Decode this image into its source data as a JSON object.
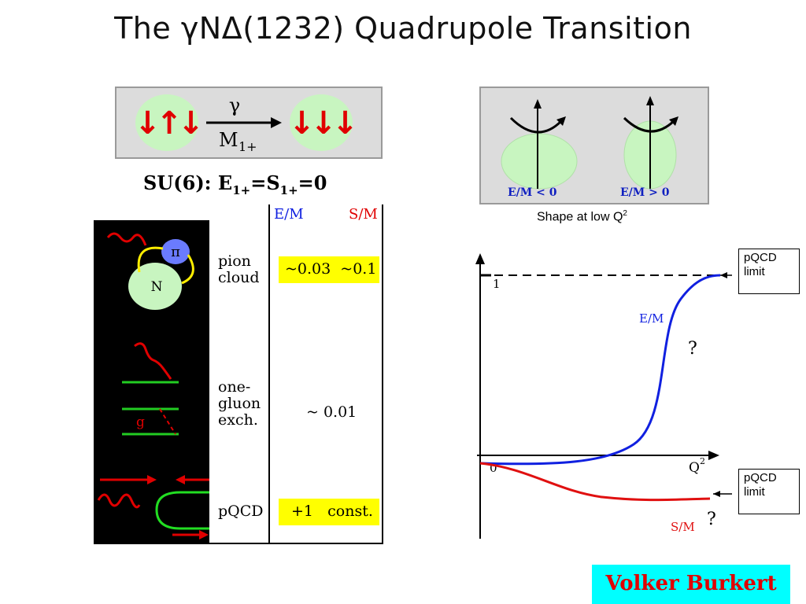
{
  "title": "The γNΔ(1232) Quadrupole Transition",
  "transition": {
    "left_arrows": "↓↑↓",
    "right_arrows": "↓↓↓",
    "photon": "γ",
    "multipole": "M",
    "multipole_sub": "1+"
  },
  "su6": {
    "prefix": "SU(6): E",
    "sub1": "1+",
    "mid": "=S",
    "sub2": "1+",
    "suffix": "=0"
  },
  "shapes": {
    "left_label": "E/M < 0",
    "right_label": "E/M > 0",
    "caption": "Shape at low Q",
    "caption_sup": "2"
  },
  "table": {
    "col_em": "E/M",
    "col_sm": "S/M",
    "rows": [
      {
        "line1": "pion",
        "line2": "cloud",
        "line3": "",
        "value": "~0.03  ~0.1"
      },
      {
        "line1": "one-",
        "line2": "gluon",
        "line3": "exch.",
        "value": "~ 0.01"
      },
      {
        "line1": "pQCD",
        "line2": "",
        "line3": "",
        "value": "+1   const."
      }
    ]
  },
  "diagrams": {
    "pion_label": "π",
    "nucleon_label": "N",
    "gluon_label": "g"
  },
  "plot": {
    "y_tick": "1",
    "origin": "0",
    "x_label": "Q",
    "x_label_sup": "2",
    "em_label": "E/M",
    "sm_label": "S/M",
    "question_mark": "?",
    "em_color": "#1020e0",
    "sm_color": "#e01010"
  },
  "limit_boxes": {
    "line1": "pQCD",
    "line2": "limit"
  },
  "author": "Volker Burkert",
  "colors": {
    "arrow_red": "#e00000",
    "bubble_green": "#c8f5c0",
    "highlight": "#ffff00",
    "author_bg": "#00ffff"
  }
}
